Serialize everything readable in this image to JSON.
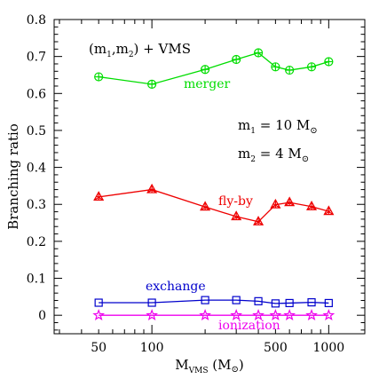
{
  "chart_data": {
    "type": "line",
    "xscale": "log",
    "xlim": [
      28,
      1600
    ],
    "ylim": [
      -0.05,
      0.8
    ],
    "ylabel": "Branching ratio",
    "xlabel_main": "M",
    "xlabel_sub": "VMS",
    "xlabel_unit_open": " (M",
    "xlabel_unit_close": ")",
    "x_ticks": [
      50,
      100,
      500,
      1000
    ],
    "x_tick_labels": [
      "50",
      "100",
      "500",
      "1000"
    ],
    "y_ticks": [
      0,
      0.1,
      0.2,
      0.3,
      0.4,
      0.5,
      0.6,
      0.7,
      0.8
    ],
    "y_tick_labels": [
      "0",
      "0.1",
      "0.2",
      "0.3",
      "0.4",
      "0.5",
      "0.6",
      "0.7",
      "0.8"
    ],
    "title_parts": [
      "(m",
      "1",
      ",m",
      "2",
      ")  +  VMS"
    ],
    "annot_m1": [
      "m",
      "1",
      "  =  10   M"
    ],
    "annot_m2": [
      "m",
      "2",
      "  =  4   M"
    ],
    "x": [
      50,
      100,
      200,
      300,
      400,
      500,
      600,
      800,
      1000
    ],
    "series": [
      {
        "name": "merger",
        "color": "#00dd00",
        "marker": "circle-plus",
        "values": [
          0.645,
          0.625,
          0.665,
          0.692,
          0.71,
          0.672,
          0.663,
          0.672,
          0.686
        ]
      },
      {
        "name": "fly-by",
        "color": "#ee0000",
        "marker": "triangle-star",
        "values": [
          0.32,
          0.34,
          0.293,
          0.267,
          0.253,
          0.299,
          0.305,
          0.294,
          0.281
        ]
      },
      {
        "name": "exchange",
        "color": "#0000cc",
        "marker": "square",
        "values": [
          0.034,
          0.034,
          0.041,
          0.041,
          0.038,
          0.032,
          0.033,
          0.035,
          0.033
        ]
      },
      {
        "name": "ionization",
        "color": "#ee00ee",
        "marker": "star",
        "values": [
          0.0,
          0.0,
          0.0,
          0.0,
          0.0,
          0.0,
          0.0,
          0.0,
          0.0
        ]
      }
    ]
  }
}
